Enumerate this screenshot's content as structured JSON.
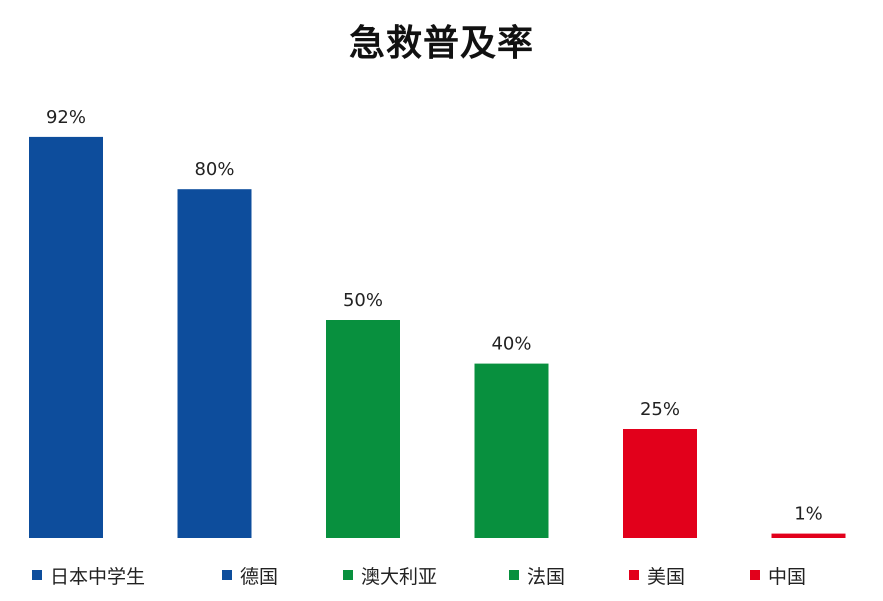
{
  "chart_data": {
    "type": "bar",
    "title": "急救普及率",
    "categories": [
      "日本中学生",
      "德国",
      "澳大利亚",
      "法国",
      "美国",
      "中国"
    ],
    "values": [
      92,
      80,
      50,
      40,
      25,
      1
    ],
    "data_labels": [
      "92%",
      "80%",
      "50%",
      "40%",
      "25%",
      "1%"
    ],
    "colors": [
      "#0d4d9c",
      "#0d4d9c",
      "#08903e",
      "#08903e",
      "#e2001b",
      "#e2001b"
    ],
    "ylim": [
      0,
      100
    ],
    "grid": false,
    "legend_position": "bottom"
  }
}
